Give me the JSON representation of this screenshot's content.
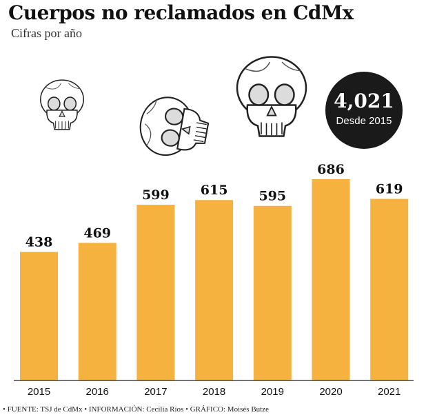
{
  "header": {
    "title": "Cuerpos no reclamados en CdMx",
    "subtitle": "Cifras por año"
  },
  "badge": {
    "value": "4,021",
    "label": "Desde 2015"
  },
  "footer": {
    "source": "• FUENTE: TSJ de CdMx • INFORMACIÓN: Cecilia Ríos • GRÁFICO: Moisés Butze"
  },
  "colors": {
    "bar": "#F6B23F",
    "badge": "#1A1A1A"
  },
  "chart_data": {
    "type": "bar",
    "title": "Cuerpos no reclamados en CdMx",
    "subtitle": "Cifras por año",
    "categories": [
      "2015",
      "2016",
      "2017",
      "2018",
      "2019",
      "2020",
      "2021"
    ],
    "values": [
      438,
      469,
      599,
      615,
      595,
      686,
      619
    ],
    "data_labels": [
      "438",
      "469",
      "599",
      "615",
      "595",
      "686",
      "619"
    ],
    "ylim": [
      0,
      740
    ],
    "grid": false,
    "legend": "none"
  }
}
